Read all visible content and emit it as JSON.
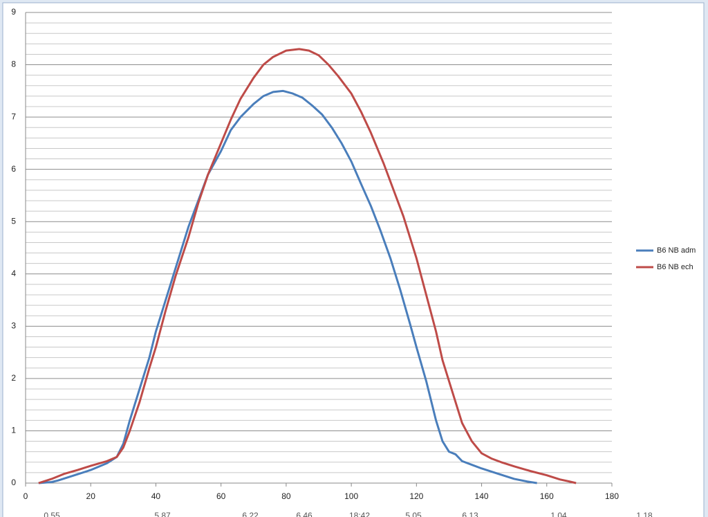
{
  "chart_data": {
    "type": "line",
    "series": [
      {
        "name": "B6 NB adm",
        "color": "#4a7ebb",
        "x": [
          4,
          8,
          10,
          15,
          20,
          25,
          28,
          30,
          32,
          35,
          38,
          40,
          42,
          45,
          48,
          50,
          53,
          56,
          60,
          63,
          66,
          70,
          73,
          76,
          79,
          82,
          85,
          88,
          91,
          94,
          97,
          100,
          103,
          106,
          109,
          112,
          115,
          118,
          120,
          123,
          126,
          128,
          130,
          132,
          134,
          137,
          140,
          145,
          150,
          154,
          157
        ],
        "values": [
          0,
          0.02,
          0.05,
          0.15,
          0.25,
          0.38,
          0.5,
          0.75,
          1.2,
          1.8,
          2.4,
          2.9,
          3.3,
          3.9,
          4.5,
          4.9,
          5.4,
          5.9,
          6.35,
          6.75,
          7.0,
          7.25,
          7.4,
          7.48,
          7.5,
          7.45,
          7.37,
          7.22,
          7.05,
          6.8,
          6.5,
          6.15,
          5.72,
          5.3,
          4.82,
          4.3,
          3.7,
          3.05,
          2.6,
          1.95,
          1.2,
          0.8,
          0.6,
          0.55,
          0.42,
          0.35,
          0.28,
          0.18,
          0.08,
          0.03,
          0
        ]
      },
      {
        "name": "B6 NB ech",
        "color": "#be4b48",
        "x": [
          4,
          8,
          12,
          16,
          20,
          25,
          28,
          30,
          32,
          35,
          38,
          40,
          43,
          46,
          50,
          53,
          56,
          60,
          63,
          66,
          70,
          73,
          76,
          80,
          84,
          87,
          90,
          93,
          96,
          100,
          103,
          106,
          110,
          113,
          116,
          120,
          123,
          126,
          128,
          131,
          134,
          137,
          140,
          143,
          146,
          150,
          155,
          160,
          164,
          167,
          169
        ],
        "values": [
          0,
          0.08,
          0.18,
          0.25,
          0.33,
          0.42,
          0.5,
          0.68,
          1.0,
          1.55,
          2.2,
          2.6,
          3.3,
          3.95,
          4.7,
          5.35,
          5.9,
          6.5,
          6.95,
          7.35,
          7.75,
          8.0,
          8.15,
          8.27,
          8.3,
          8.27,
          8.18,
          8.0,
          7.78,
          7.45,
          7.1,
          6.7,
          6.1,
          5.6,
          5.1,
          4.3,
          3.6,
          2.9,
          2.35,
          1.75,
          1.15,
          0.8,
          0.57,
          0.47,
          0.4,
          0.32,
          0.23,
          0.15,
          0.07,
          0.03,
          0
        ]
      }
    ],
    "xlim": [
      0,
      180
    ],
    "xticks": [
      0,
      20,
      40,
      60,
      80,
      100,
      120,
      140,
      160,
      180
    ],
    "ylim": [
      0,
      9
    ],
    "yticks": [
      0,
      1,
      2,
      3,
      4,
      5,
      6,
      7,
      8,
      9
    ],
    "y_minor_gridlines": [
      0.2,
      0.4,
      0.6,
      0.8,
      1.2,
      1.4,
      1.6,
      1.8,
      2.2,
      2.4,
      2.6,
      2.8,
      3.2,
      3.4,
      3.6,
      3.8,
      4.2,
      4.4,
      4.6,
      4.8,
      5.2,
      5.4,
      5.6,
      5.8,
      6.2,
      6.4,
      6.6,
      6.8,
      7.2,
      7.4,
      7.6,
      7.8,
      8.2,
      8.4,
      8.6,
      8.8
    ],
    "grid": true,
    "legend": "right",
    "footer_labels": [
      "0.55",
      "5.87",
      "6.22",
      "6.46",
      "18:42",
      "5.05",
      "6.13",
      "1.04",
      "1.18"
    ]
  }
}
